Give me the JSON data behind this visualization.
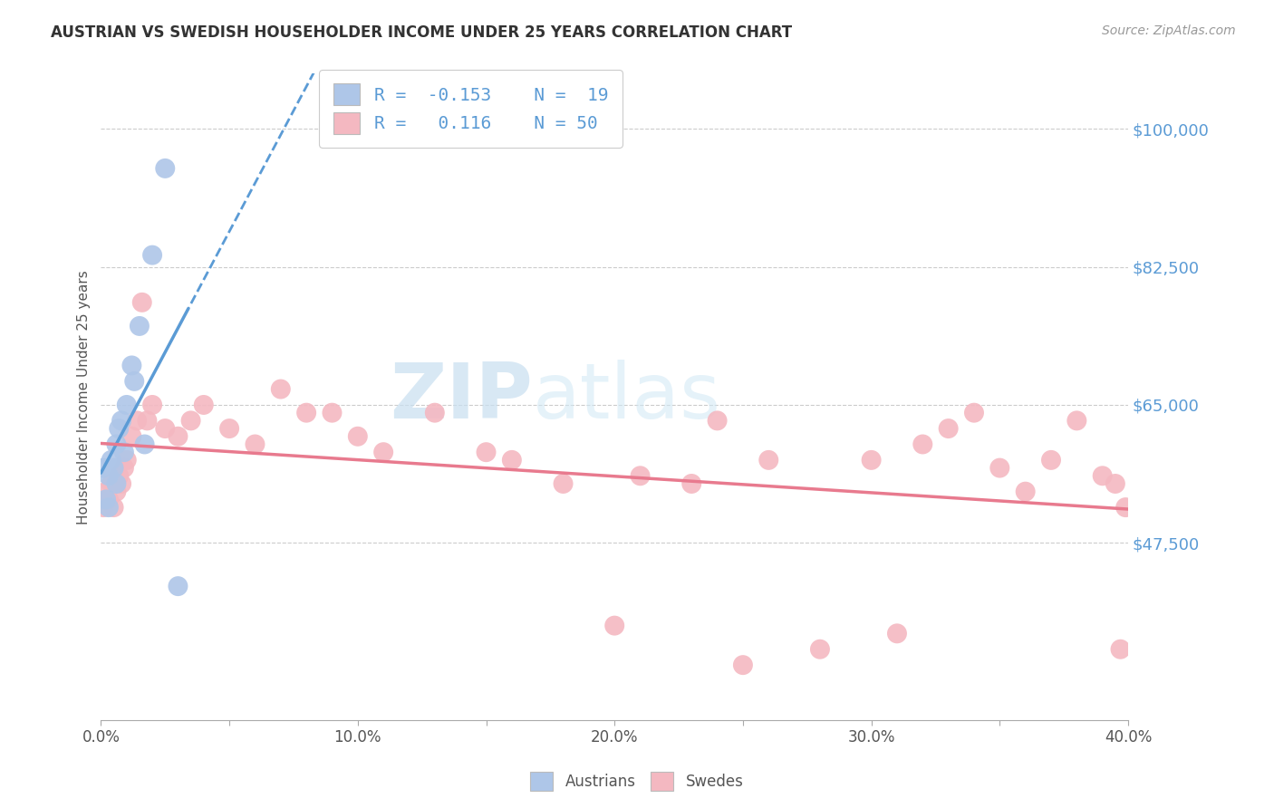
{
  "title": "AUSTRIAN VS SWEDISH HOUSEHOLDER INCOME UNDER 25 YEARS CORRELATION CHART",
  "source": "Source: ZipAtlas.com",
  "ylabel": "Householder Income Under 25 years",
  "xlim": [
    0.0,
    0.4
  ],
  "ylim": [
    25000,
    107000
  ],
  "yticks": [
    47500,
    65000,
    82500,
    100000
  ],
  "ytick_labels": [
    "$47,500",
    "$65,000",
    "$82,500",
    "$100,000"
  ],
  "xtick_labels": [
    "0.0%",
    "",
    "10.0%",
    "",
    "20.0%",
    "",
    "30.0%",
    "",
    "40.0%"
  ],
  "xticks": [
    0.0,
    0.05,
    0.1,
    0.15,
    0.2,
    0.25,
    0.3,
    0.35,
    0.4
  ],
  "color_austrians": "#aec6e8",
  "color_swedes": "#f4b8c1",
  "color_line_austrians": "#5b9bd5",
  "color_line_swedes": "#e87a8e",
  "watermark_zip": "ZIP",
  "watermark_atlas": "atlas",
  "austrians_x": [
    0.001,
    0.002,
    0.003,
    0.003,
    0.004,
    0.005,
    0.006,
    0.006,
    0.007,
    0.008,
    0.009,
    0.01,
    0.012,
    0.013,
    0.015,
    0.017,
    0.02,
    0.025,
    0.03
  ],
  "austrians_y": [
    57000,
    53000,
    56000,
    52000,
    58000,
    57000,
    60000,
    55000,
    62000,
    63000,
    59000,
    65000,
    70000,
    68000,
    75000,
    60000,
    84000,
    95000,
    42000
  ],
  "swedes_x": [
    0.001,
    0.002,
    0.003,
    0.004,
    0.005,
    0.006,
    0.007,
    0.008,
    0.009,
    0.01,
    0.012,
    0.014,
    0.016,
    0.018,
    0.02,
    0.025,
    0.03,
    0.035,
    0.04,
    0.05,
    0.06,
    0.07,
    0.08,
    0.09,
    0.1,
    0.11,
    0.13,
    0.15,
    0.16,
    0.18,
    0.2,
    0.21,
    0.23,
    0.24,
    0.25,
    0.26,
    0.28,
    0.3,
    0.31,
    0.32,
    0.33,
    0.34,
    0.35,
    0.36,
    0.37,
    0.38,
    0.39,
    0.395,
    0.397,
    0.399
  ],
  "swedes_y": [
    52000,
    54000,
    53000,
    55000,
    52000,
    54000,
    56000,
    55000,
    57000,
    58000,
    61000,
    63000,
    78000,
    63000,
    65000,
    62000,
    61000,
    63000,
    65000,
    62000,
    60000,
    67000,
    64000,
    64000,
    61000,
    59000,
    64000,
    59000,
    58000,
    55000,
    37000,
    56000,
    55000,
    63000,
    32000,
    58000,
    34000,
    58000,
    36000,
    60000,
    62000,
    64000,
    57000,
    54000,
    58000,
    63000,
    56000,
    55000,
    34000,
    52000
  ]
}
